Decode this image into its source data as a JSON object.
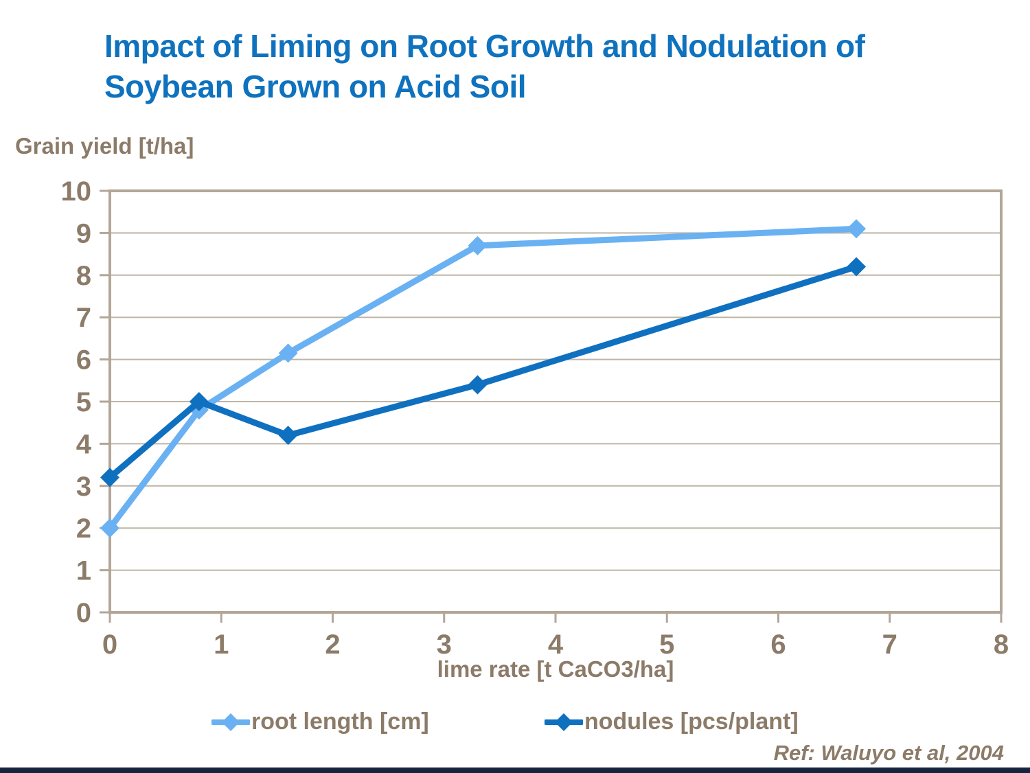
{
  "slide": {
    "title_line1": "Impact of Liming on Root Growth and Nodulation of",
    "title_line2": "Soybean Grown on Acid Soil",
    "reference": "Ref: Waluyo et al, 2004"
  },
  "colors": {
    "title": "#0F72BE",
    "text": "#8C7B68",
    "axis_border": "#B3A698",
    "gridline": "#BEB5A6",
    "series_root_length": "#69B1F2",
    "series_nodules": "#0F70C0",
    "footer_bar": "#16243E"
  },
  "chart_data": {
    "type": "line",
    "title": "",
    "y_axis_label": "Grain yield [t/ha]",
    "x_axis_label": "lime rate [t CaCO3/ha]",
    "xlim": [
      0,
      8
    ],
    "ylim": [
      0,
      10
    ],
    "x_ticks": [
      0,
      1,
      2,
      3,
      4,
      5,
      6,
      7,
      8
    ],
    "y_ticks": [
      0,
      1,
      2,
      3,
      4,
      5,
      6,
      7,
      8,
      9,
      10
    ],
    "grid": "horizontal",
    "legend_position": "bottom",
    "series": [
      {
        "name": "root length [cm]",
        "color": "#69B1F2",
        "marker": "diamond",
        "x": [
          0,
          0.8,
          1.6,
          3.3,
          6.7
        ],
        "y": [
          2.0,
          4.8,
          6.15,
          8.7,
          9.1
        ]
      },
      {
        "name": "nodules [pcs/plant]",
        "color": "#0F70C0",
        "marker": "diamond",
        "x": [
          0,
          0.8,
          1.6,
          3.3,
          6.7
        ],
        "y": [
          3.2,
          5.0,
          4.2,
          5.4,
          8.2
        ]
      }
    ]
  }
}
